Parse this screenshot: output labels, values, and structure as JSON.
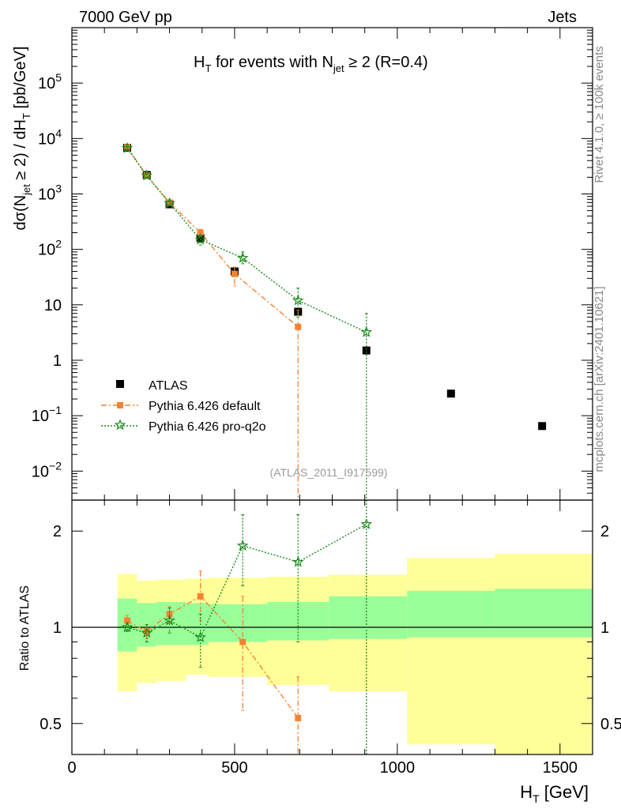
{
  "header": {
    "left": "7000 GeV pp",
    "right": "Jets"
  },
  "side_labels": {
    "rivet": "Rivet 4.1.0, ≥ 100k events",
    "mcplots": "mcplots.cern.ch [arXiv:2401.10621]"
  },
  "colors": {
    "atlas": "#000000",
    "default": "#f58231",
    "proq2o": "#1a8a1a",
    "band_outer": "#ffff99",
    "band_inner": "#99ff99"
  },
  "chart_data": [
    {
      "type": "scatter",
      "id": "main",
      "title": "H_T for events with N_jet ≥ 2 (R=0.4)",
      "title_parts": {
        "a": "H",
        "a_sub": "T",
        "b": " for events with N",
        "b_sub": "jet",
        "c": " ≥ 2 (R=0.4)"
      },
      "ylabel": "dσ(N_jet ≥ 2) / dH_T [pb/GeV]",
      "ylabel_parts": {
        "a": "dσ(N",
        "a_sub": "jet",
        "b": " ≥ 2) / dH",
        "b_sub": "T",
        "c": " [pb/GeV]"
      },
      "yscale": "log",
      "xlim": [
        0,
        1600
      ],
      "ylim": [
        0.003,
        1000000
      ],
      "ytick_labels": [
        {
          "v": 0.01,
          "base": "10",
          "exp": "−2"
        },
        {
          "v": 0.1,
          "base": "10",
          "exp": "−1"
        },
        {
          "v": 1,
          "base": "1",
          "exp": ""
        },
        {
          "v": 10,
          "base": "10",
          "exp": ""
        },
        {
          "v": 100,
          "base": "10",
          "exp": "2"
        },
        {
          "v": 1000,
          "base": "10",
          "exp": "3"
        },
        {
          "v": 10000,
          "base": "10",
          "exp": "4"
        },
        {
          "v": 100000,
          "base": "10",
          "exp": "5"
        }
      ],
      "watermark": "(ATLAS_2011_I917599)",
      "legend": [
        {
          "label": "ATLAS",
          "marker": "square"
        },
        {
          "label": "Pythia 6.426 default",
          "marker": "square-line"
        },
        {
          "label": "Pythia 6.426 pro-q2o",
          "marker": "star"
        }
      ],
      "series": [
        {
          "name": "ATLAS",
          "style": "points",
          "x": [
            170,
            230,
            300,
            395,
            500,
            695,
            905,
            1165,
            1445
          ],
          "y": [
            6800,
            2200,
            650,
            160,
            40,
            7.5,
            1.5,
            0.25,
            0.065
          ]
        },
        {
          "name": "Pythia 6.426 default",
          "style": "dashdot",
          "x": [
            170,
            230,
            300,
            395,
            500,
            695
          ],
          "y": [
            7000,
            2150,
            700,
            200,
            36,
            4
          ],
          "err_lo": [
            6600,
            2050,
            650,
            170,
            22,
            0.003
          ],
          "err_hi": [
            7400,
            2250,
            750,
            230,
            48,
            8
          ]
        },
        {
          "name": "Pythia 6.426 pro-q2o",
          "style": "dotted",
          "x": [
            170,
            230,
            300,
            395,
            525,
            695,
            905
          ],
          "y": [
            6700,
            2150,
            680,
            150,
            70,
            12,
            3.2
          ],
          "err_lo": [
            6300,
            2000,
            620,
            120,
            55,
            6,
            0.003
          ],
          "err_hi": [
            7100,
            2300,
            740,
            180,
            90,
            20,
            7
          ]
        }
      ]
    },
    {
      "type": "scatter",
      "id": "ratio",
      "ylabel": "Ratio to ATLAS",
      "xlabel": "H_T [GeV]",
      "xlabel_parts": {
        "a": "H",
        "a_sub": "T",
        "b": " [GeV]"
      },
      "yscale": "log",
      "xlim": [
        0,
        1600
      ],
      "ylim": [
        0.4,
        2.5
      ],
      "xtick_labels": [
        0,
        500,
        1000,
        1500
      ],
      "ytick_labels": [
        0.5,
        1,
        2
      ],
      "bands": {
        "edges": [
          140,
          200,
          260,
          350,
          420,
          600,
          790,
          1030,
          1300,
          1600
        ],
        "inner_lo": [
          0.84,
          0.87,
          0.88,
          0.88,
          0.9,
          0.91,
          0.92,
          0.93,
          0.93
        ],
        "inner_hi": [
          1.23,
          1.19,
          1.2,
          1.19,
          1.18,
          1.2,
          1.25,
          1.3,
          1.32
        ],
        "outer_lo": [
          0.63,
          0.67,
          0.68,
          0.71,
          0.7,
          0.66,
          0.63,
          0.43,
          0.37
        ],
        "outer_hi": [
          1.47,
          1.4,
          1.41,
          1.42,
          1.43,
          1.44,
          1.46,
          1.65,
          1.7
        ]
      },
      "series": [
        {
          "name": "Pythia 6.426 default",
          "style": "dashdot",
          "x": [
            170,
            230,
            300,
            395,
            525,
            695
          ],
          "y": [
            1.05,
            0.97,
            1.1,
            1.25,
            0.9,
            0.52
          ],
          "err_lo": [
            1.01,
            0.92,
            1.04,
            1.05,
            0.55,
            0.3
          ],
          "err_hi": [
            1.09,
            1.02,
            1.16,
            1.5,
            1.25,
            0.7
          ]
        },
        {
          "name": "Pythia 6.426 pro-q2o",
          "style": "dotted",
          "x": [
            170,
            230,
            300,
            395,
            525,
            695,
            905
          ],
          "y": [
            1.0,
            0.96,
            1.05,
            0.93,
            1.8,
            1.6,
            2.1
          ],
          "err_lo": [
            0.97,
            0.9,
            0.96,
            0.75,
            1.35,
            0.9,
            0.3
          ],
          "err_hi": [
            1.03,
            1.02,
            1.15,
            1.1,
            2.25,
            2.25,
            2.5
          ]
        }
      ]
    }
  ]
}
